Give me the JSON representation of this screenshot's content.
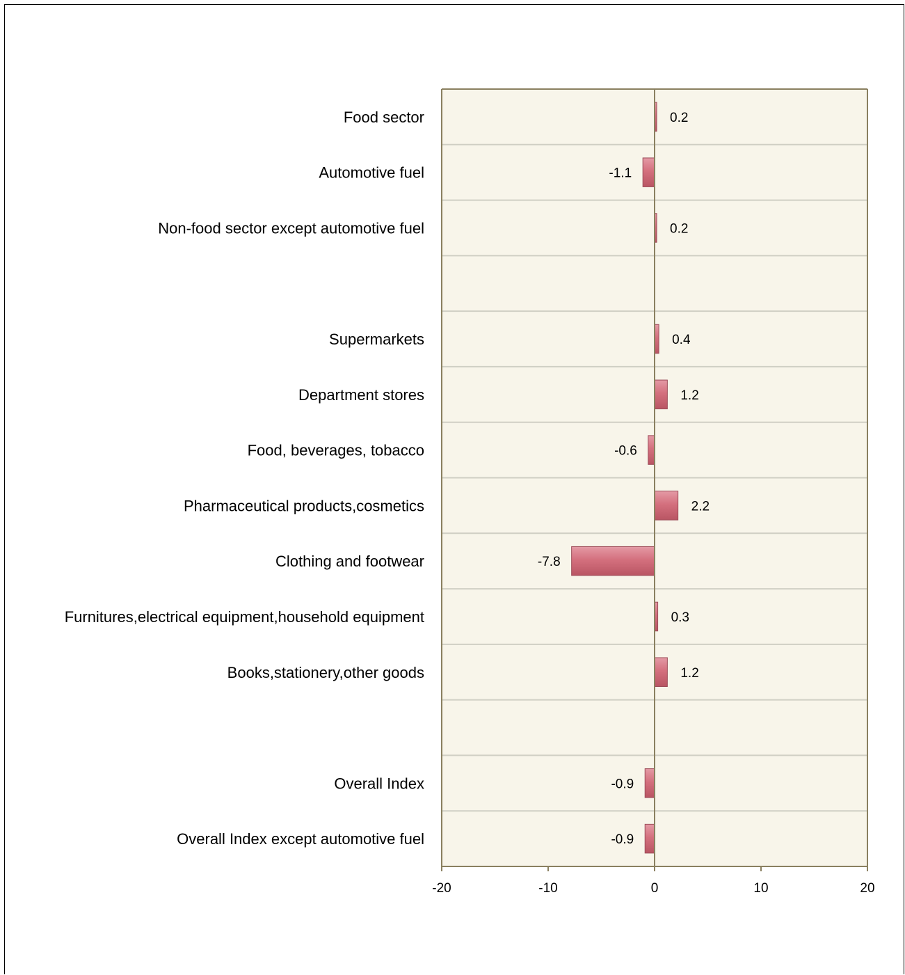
{
  "chart_data": {
    "type": "bar",
    "orientation": "horizontal",
    "title": "",
    "xlabel": "",
    "ylabel": "",
    "xlim": [
      -20,
      20
    ],
    "xticks": [
      -20,
      -10,
      0,
      10,
      20
    ],
    "xtick_labels": [
      "-20",
      "-10",
      "0",
      "10",
      "20"
    ],
    "grid": "horizontal category separators",
    "legend": "none",
    "colors": {
      "plot_background": "#f8f5ea",
      "bar_fill": "#d4707e",
      "bar_edge": "#9c4b58",
      "grid_line": "#d0cfc4",
      "axis_line": "#8a8060"
    },
    "categories": [
      "Food sector",
      "Automotive fuel",
      "Non-food sector except automotive fuel",
      "",
      "Supermarkets",
      "Department stores",
      "Food, beverages, tobacco",
      "Pharmaceutical products,cosmetics",
      "Clothing and footwear",
      "Furnitures,electrical equipment,household equipment",
      "Books,stationery,other goods",
      "",
      "Overall Index",
      "Overall Index except automotive fuel"
    ],
    "values": [
      0.2,
      -1.1,
      0.2,
      null,
      0.4,
      1.2,
      -0.6,
      2.2,
      -7.8,
      0.3,
      1.2,
      null,
      -0.9,
      -0.9
    ],
    "value_labels": [
      "0.2",
      "-1.1",
      "0.2",
      "",
      "0.4",
      "1.2",
      "-0.6",
      "2.2",
      "-7.8",
      "0.3",
      "1.2",
      "",
      "-0.9",
      "-0.9"
    ]
  }
}
